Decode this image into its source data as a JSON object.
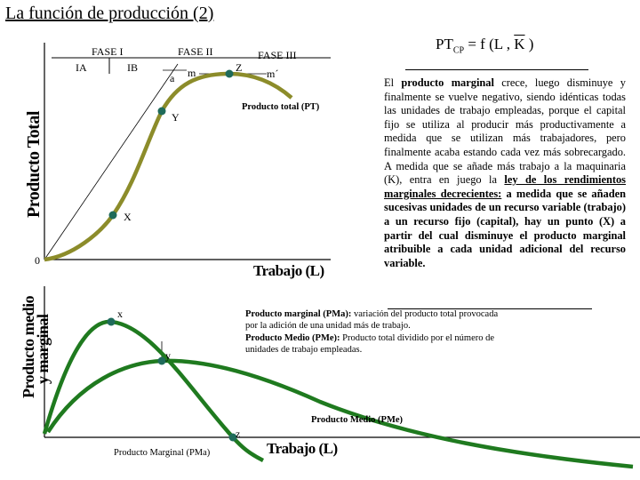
{
  "title": "La función de producción (2)",
  "formula": {
    "lhs": "PT",
    "lhs_sub": "CP",
    "rhs_pre": " = f (L , ",
    "rhs_k": "K",
    "rhs_post": " )"
  },
  "description": {
    "p1": "El ",
    "p1_bold": "producto marginal",
    "p2": " crece, luego disminuye y finalmente se vuelve negativo, siendo idénticas todas las unidades de trabajo empleadas, porque el capital fijo se utiliza al producir más productivamente a medida que se utilizan más trabajadores, pero finalmente acaba estando cada vez más sobrecargado. A medida que se añade más trabajo a la maquinaria (K), entra en juego la ",
    "p2_law": "ley de los rendimientos marginales decrecientes:",
    "p3": " a medida que se añaden sucesivas unidades de un recurso variable (trabajo) a un recurso fijo (capital), hay un punto (X) a partir del cual disminuye el producto marginal atribuible a cada unidad adicional del recurso variable."
  },
  "definitions": {
    "pma_term": "Producto marginal (PMa):",
    "pma_text": " variación del producto total provocada por la adición de una unidad más de trabajo.",
    "pme_term": "Producto Medio (PMe):",
    "pme_text": " Producto total dividido por el número de unidades de trabajo empleadas."
  },
  "diagram": {
    "phase1": "FASE I",
    "phase1a": "IA",
    "phase1b": "IB",
    "phase2": "FASE II",
    "phase3": "FASE III",
    "point_a": "a",
    "point_m": "m",
    "point_z_upper": "Z",
    "point_m_prime": "m´",
    "pt_label": "Producto total (PT)",
    "point_y_upper": "Y",
    "point_x_upper": "X",
    "origin": "0",
    "y_axis_upper": "Producto Total",
    "x_axis_upper": "Trabajo (L)",
    "y_axis_lower_1": "Producto medio",
    "y_axis_lower_2": "y marginal",
    "point_x_lower": "x",
    "point_y_lower": "y",
    "pme_label": "Producto Medio (PMe)",
    "point_z_lower": "z",
    "pma_label": "Producto Marginal (PMa)",
    "x_axis_lower": "Trabajo (L)"
  },
  "colors": {
    "total_curve": "#8c8c2a",
    "lower_curves": "#1f7a1f",
    "points": "#1f6b5a"
  }
}
